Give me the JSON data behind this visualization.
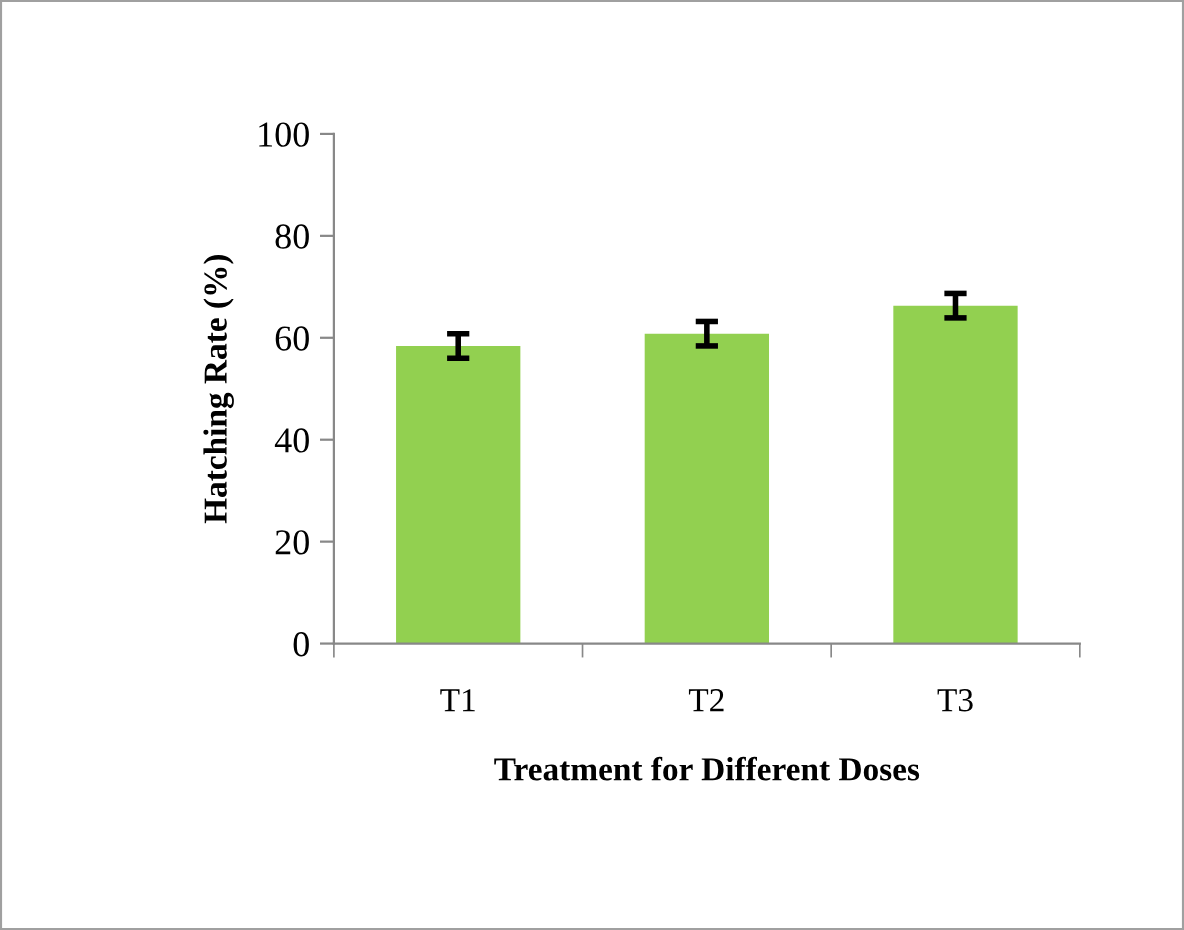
{
  "chart_data": {
    "type": "bar",
    "xlabel": "Treatment for Different Doses",
    "ylabel": "Hatching Rate (%)",
    "categories": [
      "T1",
      "T2",
      "T3"
    ],
    "series": [
      {
        "color": "#92d050",
        "values": [
          58.4,
          60.8,
          66.3
        ],
        "errors": [
          2.4,
          2.4,
          2.4
        ]
      }
    ],
    "ylim": [
      0,
      100
    ],
    "yticks": [
      0,
      20,
      40,
      60,
      80,
      100
    ],
    "grid": false,
    "legend": false
  }
}
